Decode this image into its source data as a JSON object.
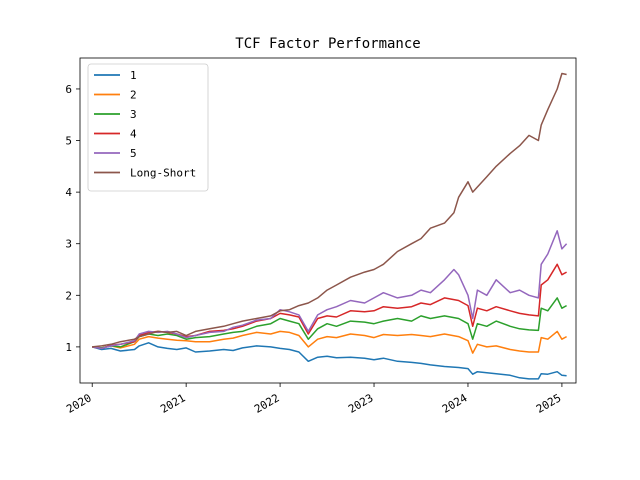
{
  "chart_data": {
    "type": "line",
    "title": "TCF Factor Performance",
    "xlabel": "",
    "ylabel": "",
    "xlim": [
      2019.87,
      2025.15
    ],
    "ylim": [
      0.3,
      6.6
    ],
    "x_ticks": [
      2020,
      2021,
      2022,
      2023,
      2024,
      2025
    ],
    "x_tick_labels": [
      "2020",
      "2021",
      "2022",
      "2023",
      "2024",
      "2025"
    ],
    "y_ticks": [
      1,
      2,
      3,
      4,
      5,
      6
    ],
    "y_tick_labels": [
      "1",
      "2",
      "3",
      "4",
      "5",
      "6"
    ],
    "grid": false,
    "legend_position": "upper-left",
    "series": [
      {
        "name": "1",
        "color": "#1f77b4",
        "points": [
          [
            2020.0,
            1.0
          ],
          [
            2020.1,
            0.95
          ],
          [
            2020.2,
            0.97
          ],
          [
            2020.3,
            0.92
          ],
          [
            2020.45,
            0.95
          ],
          [
            2020.5,
            1.02
          ],
          [
            2020.6,
            1.08
          ],
          [
            2020.7,
            1.0
          ],
          [
            2020.8,
            0.97
          ],
          [
            2020.9,
            0.95
          ],
          [
            2021.0,
            0.98
          ],
          [
            2021.1,
            0.9
          ],
          [
            2021.25,
            0.92
          ],
          [
            2021.4,
            0.95
          ],
          [
            2021.5,
            0.93
          ],
          [
            2021.6,
            0.98
          ],
          [
            2021.75,
            1.02
          ],
          [
            2021.9,
            1.0
          ],
          [
            2022.0,
            0.97
          ],
          [
            2022.1,
            0.95
          ],
          [
            2022.2,
            0.9
          ],
          [
            2022.3,
            0.72
          ],
          [
            2022.4,
            0.8
          ],
          [
            2022.5,
            0.82
          ],
          [
            2022.6,
            0.79
          ],
          [
            2022.75,
            0.8
          ],
          [
            2022.9,
            0.78
          ],
          [
            2023.0,
            0.75
          ],
          [
            2023.1,
            0.78
          ],
          [
            2023.25,
            0.72
          ],
          [
            2023.4,
            0.7
          ],
          [
            2023.5,
            0.68
          ],
          [
            2023.6,
            0.65
          ],
          [
            2023.75,
            0.62
          ],
          [
            2023.9,
            0.6
          ],
          [
            2024.0,
            0.58
          ],
          [
            2024.05,
            0.47
          ],
          [
            2024.1,
            0.52
          ],
          [
            2024.2,
            0.5
          ],
          [
            2024.3,
            0.48
          ],
          [
            2024.45,
            0.45
          ],
          [
            2024.55,
            0.4
          ],
          [
            2024.65,
            0.38
          ],
          [
            2024.75,
            0.38
          ],
          [
            2024.78,
            0.48
          ],
          [
            2024.85,
            0.47
          ],
          [
            2024.95,
            0.52
          ],
          [
            2025.0,
            0.45
          ],
          [
            2025.05,
            0.44
          ]
        ]
      },
      {
        "name": "2",
        "color": "#ff7f0e",
        "points": [
          [
            2020.0,
            1.0
          ],
          [
            2020.1,
            0.98
          ],
          [
            2020.2,
            1.02
          ],
          [
            2020.3,
            0.98
          ],
          [
            2020.45,
            1.05
          ],
          [
            2020.5,
            1.15
          ],
          [
            2020.6,
            1.2
          ],
          [
            2020.7,
            1.17
          ],
          [
            2020.8,
            1.15
          ],
          [
            2020.9,
            1.13
          ],
          [
            2021.0,
            1.12
          ],
          [
            2021.1,
            1.1
          ],
          [
            2021.25,
            1.1
          ],
          [
            2021.4,
            1.15
          ],
          [
            2021.5,
            1.17
          ],
          [
            2021.6,
            1.22
          ],
          [
            2021.75,
            1.28
          ],
          [
            2021.9,
            1.25
          ],
          [
            2022.0,
            1.3
          ],
          [
            2022.1,
            1.28
          ],
          [
            2022.2,
            1.22
          ],
          [
            2022.3,
            1.0
          ],
          [
            2022.4,
            1.15
          ],
          [
            2022.5,
            1.2
          ],
          [
            2022.6,
            1.18
          ],
          [
            2022.75,
            1.25
          ],
          [
            2022.9,
            1.22
          ],
          [
            2023.0,
            1.18
          ],
          [
            2023.1,
            1.24
          ],
          [
            2023.25,
            1.22
          ],
          [
            2023.4,
            1.24
          ],
          [
            2023.5,
            1.22
          ],
          [
            2023.6,
            1.2
          ],
          [
            2023.75,
            1.25
          ],
          [
            2023.9,
            1.2
          ],
          [
            2024.0,
            1.12
          ],
          [
            2024.05,
            0.88
          ],
          [
            2024.1,
            1.05
          ],
          [
            2024.2,
            1.0
          ],
          [
            2024.3,
            1.02
          ],
          [
            2024.45,
            0.95
          ],
          [
            2024.55,
            0.92
          ],
          [
            2024.65,
            0.9
          ],
          [
            2024.75,
            0.9
          ],
          [
            2024.78,
            1.18
          ],
          [
            2024.85,
            1.15
          ],
          [
            2024.95,
            1.3
          ],
          [
            2025.0,
            1.15
          ],
          [
            2025.05,
            1.2
          ]
        ]
      },
      {
        "name": "3",
        "color": "#2ca02c",
        "points": [
          [
            2020.0,
            1.0
          ],
          [
            2020.1,
            0.98
          ],
          [
            2020.2,
            1.02
          ],
          [
            2020.3,
            1.0
          ],
          [
            2020.45,
            1.1
          ],
          [
            2020.5,
            1.2
          ],
          [
            2020.6,
            1.25
          ],
          [
            2020.7,
            1.22
          ],
          [
            2020.8,
            1.25
          ],
          [
            2020.9,
            1.22
          ],
          [
            2021.0,
            1.15
          ],
          [
            2021.1,
            1.18
          ],
          [
            2021.25,
            1.2
          ],
          [
            2021.4,
            1.25
          ],
          [
            2021.5,
            1.28
          ],
          [
            2021.6,
            1.3
          ],
          [
            2021.75,
            1.4
          ],
          [
            2021.9,
            1.45
          ],
          [
            2022.0,
            1.55
          ],
          [
            2022.1,
            1.5
          ],
          [
            2022.2,
            1.45
          ],
          [
            2022.3,
            1.15
          ],
          [
            2022.4,
            1.35
          ],
          [
            2022.5,
            1.45
          ],
          [
            2022.6,
            1.4
          ],
          [
            2022.75,
            1.5
          ],
          [
            2022.9,
            1.48
          ],
          [
            2023.0,
            1.45
          ],
          [
            2023.1,
            1.5
          ],
          [
            2023.25,
            1.55
          ],
          [
            2023.4,
            1.5
          ],
          [
            2023.5,
            1.6
          ],
          [
            2023.6,
            1.55
          ],
          [
            2023.75,
            1.6
          ],
          [
            2023.9,
            1.55
          ],
          [
            2024.0,
            1.45
          ],
          [
            2024.05,
            1.15
          ],
          [
            2024.1,
            1.45
          ],
          [
            2024.2,
            1.4
          ],
          [
            2024.3,
            1.5
          ],
          [
            2024.45,
            1.4
          ],
          [
            2024.55,
            1.35
          ],
          [
            2024.65,
            1.33
          ],
          [
            2024.75,
            1.32
          ],
          [
            2024.78,
            1.75
          ],
          [
            2024.85,
            1.7
          ],
          [
            2024.95,
            1.95
          ],
          [
            2025.0,
            1.75
          ],
          [
            2025.05,
            1.8
          ]
        ]
      },
      {
        "name": "4",
        "color": "#d62728",
        "points": [
          [
            2020.0,
            1.0
          ],
          [
            2020.1,
            0.97
          ],
          [
            2020.2,
            1.03
          ],
          [
            2020.3,
            1.05
          ],
          [
            2020.45,
            1.1
          ],
          [
            2020.5,
            1.22
          ],
          [
            2020.6,
            1.28
          ],
          [
            2020.7,
            1.3
          ],
          [
            2020.8,
            1.28
          ],
          [
            2020.9,
            1.25
          ],
          [
            2021.0,
            1.2
          ],
          [
            2021.1,
            1.22
          ],
          [
            2021.25,
            1.3
          ],
          [
            2021.4,
            1.32
          ],
          [
            2021.5,
            1.35
          ],
          [
            2021.6,
            1.4
          ],
          [
            2021.75,
            1.5
          ],
          [
            2021.9,
            1.55
          ],
          [
            2022.0,
            1.65
          ],
          [
            2022.1,
            1.62
          ],
          [
            2022.2,
            1.58
          ],
          [
            2022.3,
            1.25
          ],
          [
            2022.4,
            1.55
          ],
          [
            2022.5,
            1.6
          ],
          [
            2022.6,
            1.58
          ],
          [
            2022.75,
            1.7
          ],
          [
            2022.9,
            1.68
          ],
          [
            2023.0,
            1.7
          ],
          [
            2023.1,
            1.78
          ],
          [
            2023.25,
            1.75
          ],
          [
            2023.4,
            1.78
          ],
          [
            2023.5,
            1.85
          ],
          [
            2023.6,
            1.82
          ],
          [
            2023.75,
            1.95
          ],
          [
            2023.9,
            1.9
          ],
          [
            2024.0,
            1.8
          ],
          [
            2024.05,
            1.4
          ],
          [
            2024.1,
            1.75
          ],
          [
            2024.2,
            1.7
          ],
          [
            2024.3,
            1.78
          ],
          [
            2024.45,
            1.7
          ],
          [
            2024.55,
            1.65
          ],
          [
            2024.65,
            1.62
          ],
          [
            2024.75,
            1.6
          ],
          [
            2024.78,
            2.2
          ],
          [
            2024.85,
            2.3
          ],
          [
            2024.95,
            2.6
          ],
          [
            2025.0,
            2.4
          ],
          [
            2025.05,
            2.45
          ]
        ]
      },
      {
        "name": "5",
        "color": "#9467bd",
        "points": [
          [
            2020.0,
            1.0
          ],
          [
            2020.1,
            0.97
          ],
          [
            2020.2,
            1.02
          ],
          [
            2020.3,
            1.05
          ],
          [
            2020.45,
            1.12
          ],
          [
            2020.5,
            1.25
          ],
          [
            2020.6,
            1.3
          ],
          [
            2020.7,
            1.28
          ],
          [
            2020.8,
            1.3
          ],
          [
            2020.9,
            1.25
          ],
          [
            2021.0,
            1.18
          ],
          [
            2021.1,
            1.22
          ],
          [
            2021.25,
            1.28
          ],
          [
            2021.4,
            1.3
          ],
          [
            2021.5,
            1.38
          ],
          [
            2021.6,
            1.42
          ],
          [
            2021.75,
            1.52
          ],
          [
            2021.9,
            1.55
          ],
          [
            2022.0,
            1.72
          ],
          [
            2022.1,
            1.68
          ],
          [
            2022.2,
            1.62
          ],
          [
            2022.3,
            1.3
          ],
          [
            2022.4,
            1.62
          ],
          [
            2022.5,
            1.72
          ],
          [
            2022.6,
            1.78
          ],
          [
            2022.75,
            1.9
          ],
          [
            2022.9,
            1.85
          ],
          [
            2023.0,
            1.95
          ],
          [
            2023.1,
            2.05
          ],
          [
            2023.25,
            1.95
          ],
          [
            2023.4,
            2.0
          ],
          [
            2023.5,
            2.1
          ],
          [
            2023.6,
            2.05
          ],
          [
            2023.75,
            2.3
          ],
          [
            2023.85,
            2.5
          ],
          [
            2023.9,
            2.4
          ],
          [
            2024.0,
            2.0
          ],
          [
            2024.05,
            1.55
          ],
          [
            2024.1,
            2.1
          ],
          [
            2024.2,
            2.0
          ],
          [
            2024.3,
            2.3
          ],
          [
            2024.45,
            2.05
          ],
          [
            2024.55,
            2.1
          ],
          [
            2024.65,
            2.0
          ],
          [
            2024.75,
            1.95
          ],
          [
            2024.78,
            2.6
          ],
          [
            2024.85,
            2.8
          ],
          [
            2024.95,
            3.25
          ],
          [
            2025.0,
            2.9
          ],
          [
            2025.05,
            3.0
          ]
        ]
      },
      {
        "name": "Long-Short",
        "color": "#8c564b",
        "points": [
          [
            2020.0,
            1.0
          ],
          [
            2020.1,
            1.02
          ],
          [
            2020.2,
            1.05
          ],
          [
            2020.3,
            1.1
          ],
          [
            2020.45,
            1.15
          ],
          [
            2020.5,
            1.2
          ],
          [
            2020.6,
            1.25
          ],
          [
            2020.7,
            1.3
          ],
          [
            2020.8,
            1.28
          ],
          [
            2020.9,
            1.3
          ],
          [
            2021.0,
            1.22
          ],
          [
            2021.1,
            1.3
          ],
          [
            2021.25,
            1.35
          ],
          [
            2021.4,
            1.4
          ],
          [
            2021.5,
            1.45
          ],
          [
            2021.6,
            1.5
          ],
          [
            2021.75,
            1.55
          ],
          [
            2021.9,
            1.6
          ],
          [
            2022.0,
            1.7
          ],
          [
            2022.1,
            1.72
          ],
          [
            2022.2,
            1.8
          ],
          [
            2022.3,
            1.85
          ],
          [
            2022.4,
            1.95
          ],
          [
            2022.5,
            2.1
          ],
          [
            2022.6,
            2.2
          ],
          [
            2022.75,
            2.35
          ],
          [
            2022.9,
            2.45
          ],
          [
            2023.0,
            2.5
          ],
          [
            2023.1,
            2.6
          ],
          [
            2023.25,
            2.85
          ],
          [
            2023.4,
            3.0
          ],
          [
            2023.5,
            3.1
          ],
          [
            2023.6,
            3.3
          ],
          [
            2023.75,
            3.4
          ],
          [
            2023.85,
            3.6
          ],
          [
            2023.9,
            3.9
          ],
          [
            2024.0,
            4.2
          ],
          [
            2024.05,
            4.0
          ],
          [
            2024.1,
            4.1
          ],
          [
            2024.2,
            4.3
          ],
          [
            2024.3,
            4.5
          ],
          [
            2024.45,
            4.75
          ],
          [
            2024.55,
            4.9
          ],
          [
            2024.65,
            5.1
          ],
          [
            2024.75,
            5.0
          ],
          [
            2024.78,
            5.3
          ],
          [
            2024.85,
            5.6
          ],
          [
            2024.95,
            6.0
          ],
          [
            2025.0,
            6.3
          ],
          [
            2025.05,
            6.28
          ]
        ]
      }
    ]
  }
}
